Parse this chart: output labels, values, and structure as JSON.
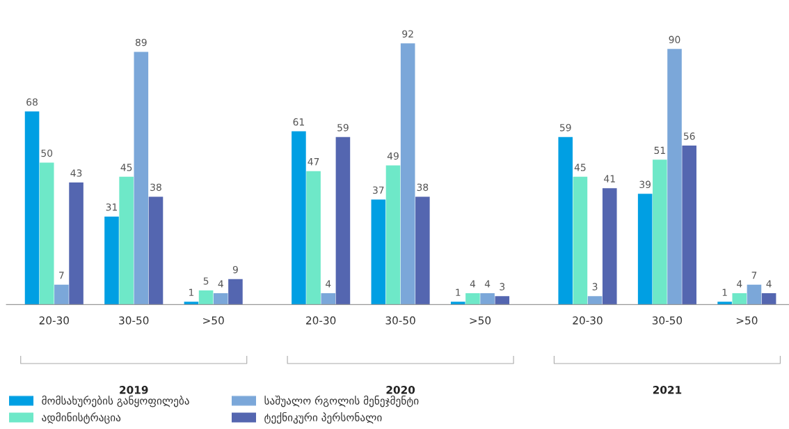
{
  "chart_data": {
    "type": "bar",
    "categories": [
      "20-30",
      "30-50",
      ">50",
      "20-30",
      "30-50",
      ">50",
      "20-30",
      "30-50",
      ">50"
    ],
    "series": [
      {
        "name": "მომსახურების განყოფილება",
        "color": "#009fe3",
        "values": [
          68,
          31,
          1,
          61,
          37,
          1,
          59,
          39,
          1
        ]
      },
      {
        "name": "ადმინისტრაცია",
        "color": "#6ee8c8",
        "values": [
          50,
          45,
          5,
          47,
          49,
          4,
          45,
          51,
          4
        ]
      },
      {
        "name": "საშუალო რგოლის მენეჯმენტი",
        "color": "#7ba7d9",
        "values": [
          7,
          89,
          4,
          4,
          92,
          4,
          3,
          90,
          7
        ]
      },
      {
        "name": "ტექნიკური პერსონალი",
        "color": "#5466b0",
        "values": [
          43,
          38,
          9,
          59,
          38,
          3,
          41,
          56,
          4
        ]
      }
    ],
    "annotations": [
      "2019",
      "2020",
      "2021"
    ],
    "data_labels": true,
    "grid": false,
    "legend": "bottom left",
    "tick_labels": "x"
  }
}
